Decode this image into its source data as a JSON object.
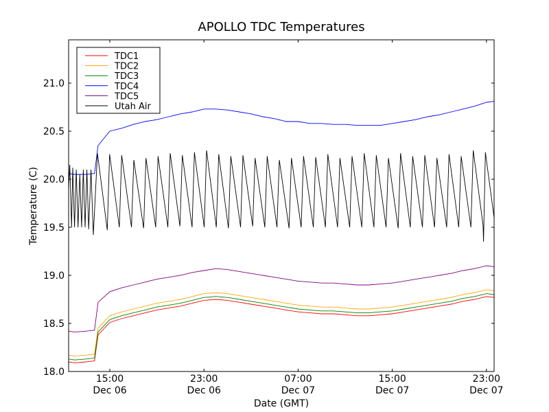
{
  "chart_data": {
    "type": "line",
    "title": "APOLLO TDC Temperatures",
    "xlabel": "Date (GMT)",
    "ylabel": "Temperature (C)",
    "x_units": "hours since Dec 06 00:00 GMT",
    "xlim": [
      11.5,
      47.65
    ],
    "ylim": [
      18.0,
      21.45
    ],
    "grid": false,
    "legend_position": "top-left",
    "yticks": [
      18.0,
      18.5,
      19.0,
      19.5,
      20.0,
      20.5,
      21.0
    ],
    "ytick_labels": [
      "18.0",
      "18.5",
      "19.0",
      "19.5",
      "20.0",
      "20.5",
      "21.0"
    ],
    "xticks": [
      15,
      23,
      31,
      39,
      47
    ],
    "xtick_labels": [
      {
        "time": "15:00",
        "date": "Dec 06"
      },
      {
        "time": "23:00",
        "date": "Dec 06"
      },
      {
        "time": "07:00",
        "date": "Dec 07"
      },
      {
        "time": "15:00",
        "date": "Dec 07"
      },
      {
        "time": "23:00",
        "date": "Dec 07"
      }
    ],
    "series": [
      {
        "name": "TDC1",
        "color": "#ff0000",
        "x": [
          11.5,
          12,
          13,
          13.7,
          14,
          15,
          16,
          17,
          18,
          19,
          20,
          21,
          22,
          23,
          24,
          25,
          26,
          27,
          28,
          29,
          30,
          31,
          32,
          33,
          34,
          35,
          36,
          37,
          38,
          39,
          40,
          41,
          42,
          43,
          44,
          45,
          46,
          47,
          47.65
        ],
        "y": [
          18.1,
          18.09,
          18.1,
          18.11,
          18.38,
          18.51,
          18.55,
          18.58,
          18.61,
          18.64,
          18.66,
          18.68,
          18.71,
          18.74,
          18.75,
          18.74,
          18.72,
          18.7,
          18.68,
          18.66,
          18.64,
          18.62,
          18.61,
          18.6,
          18.6,
          18.59,
          18.58,
          18.58,
          18.59,
          18.6,
          18.62,
          18.64,
          18.66,
          18.68,
          18.7,
          18.73,
          18.75,
          18.78,
          18.77
        ]
      },
      {
        "name": "TDC2",
        "color": "#ffa500",
        "x": [
          11.5,
          12,
          13,
          13.7,
          14,
          15,
          16,
          17,
          18,
          19,
          20,
          21,
          22,
          23,
          24,
          25,
          26,
          27,
          28,
          29,
          30,
          31,
          32,
          33,
          34,
          35,
          36,
          37,
          38,
          39,
          40,
          41,
          42,
          43,
          44,
          45,
          46,
          47,
          47.65
        ],
        "y": [
          18.17,
          18.16,
          18.17,
          18.18,
          18.45,
          18.58,
          18.62,
          18.65,
          18.68,
          18.71,
          18.73,
          18.75,
          18.78,
          18.81,
          18.82,
          18.81,
          18.79,
          18.77,
          18.75,
          18.73,
          18.71,
          18.69,
          18.68,
          18.67,
          18.67,
          18.66,
          18.65,
          18.65,
          18.66,
          18.67,
          18.69,
          18.71,
          18.73,
          18.75,
          18.77,
          18.8,
          18.82,
          18.85,
          18.84
        ]
      },
      {
        "name": "TDC3",
        "color": "#008000",
        "x": [
          11.5,
          12,
          13,
          13.7,
          14,
          15,
          16,
          17,
          18,
          19,
          20,
          21,
          22,
          23,
          24,
          25,
          26,
          27,
          28,
          29,
          30,
          31,
          32,
          33,
          34,
          35,
          36,
          37,
          38,
          39,
          40,
          41,
          42,
          43,
          44,
          45,
          46,
          47,
          47.65
        ],
        "y": [
          18.13,
          18.12,
          18.13,
          18.14,
          18.41,
          18.54,
          18.58,
          18.61,
          18.64,
          18.67,
          18.69,
          18.71,
          18.74,
          18.77,
          18.78,
          18.77,
          18.75,
          18.73,
          18.71,
          18.69,
          18.67,
          18.65,
          18.64,
          18.63,
          18.63,
          18.62,
          18.61,
          18.61,
          18.62,
          18.63,
          18.65,
          18.67,
          18.69,
          18.71,
          18.73,
          18.76,
          18.78,
          18.81,
          18.8
        ]
      },
      {
        "name": "TDC4",
        "color": "#0000ff",
        "x": [
          11.5,
          12,
          13,
          13.7,
          14,
          15,
          16,
          17,
          18,
          19,
          20,
          21,
          22,
          23,
          24,
          25,
          26,
          27,
          28,
          29,
          30,
          31,
          32,
          33,
          34,
          35,
          36,
          37,
          38,
          39,
          40,
          41,
          42,
          43,
          44,
          45,
          46,
          47,
          47.65
        ],
        "y": [
          20.06,
          20.05,
          20.05,
          20.06,
          20.35,
          20.5,
          20.53,
          20.57,
          20.6,
          20.62,
          20.65,
          20.68,
          20.7,
          20.73,
          20.73,
          20.72,
          20.7,
          20.68,
          20.65,
          20.63,
          20.6,
          20.6,
          20.58,
          20.58,
          20.57,
          20.57,
          20.56,
          20.56,
          20.56,
          20.58,
          20.6,
          20.62,
          20.65,
          20.67,
          20.7,
          20.73,
          20.76,
          20.8,
          20.81
        ]
      },
      {
        "name": "TDC5",
        "color": "#800080",
        "x": [
          11.5,
          12,
          13,
          13.7,
          14,
          15,
          16,
          17,
          18,
          19,
          20,
          21,
          22,
          23,
          24,
          25,
          26,
          27,
          28,
          29,
          30,
          31,
          32,
          33,
          34,
          35,
          36,
          37,
          38,
          39,
          40,
          41,
          42,
          43,
          44,
          45,
          46,
          47,
          47.65
        ],
        "y": [
          18.42,
          18.41,
          18.42,
          18.43,
          18.72,
          18.83,
          18.87,
          18.9,
          18.93,
          18.96,
          18.98,
          19.0,
          19.03,
          19.05,
          19.07,
          19.06,
          19.04,
          19.02,
          19.0,
          18.98,
          18.96,
          18.94,
          18.93,
          18.92,
          18.92,
          18.91,
          18.9,
          18.9,
          18.91,
          18.92,
          18.94,
          18.96,
          18.98,
          19.0,
          19.02,
          19.05,
          19.07,
          19.1,
          19.09
        ]
      },
      {
        "name": "Utah Air",
        "color": "#000000",
        "x": [
          11.5,
          11.6,
          11.75,
          11.85,
          12.0,
          12.15,
          12.3,
          12.45,
          12.6,
          12.75,
          12.9,
          13.05,
          13.2,
          13.4,
          13.6,
          13.95,
          14.78,
          14.98,
          15.81,
          16.01,
          16.84,
          17.04,
          17.87,
          18.07,
          18.9,
          19.1,
          19.93,
          20.13,
          20.96,
          21.16,
          21.99,
          22.19,
          23.02,
          23.22,
          24.05,
          24.25,
          25.08,
          25.28,
          26.11,
          26.31,
          27.14,
          27.34,
          28.17,
          28.37,
          29.2,
          29.4,
          30.23,
          30.43,
          31.26,
          31.46,
          32.29,
          32.49,
          33.32,
          33.52,
          34.35,
          34.55,
          35.38,
          35.58,
          36.41,
          36.61,
          37.44,
          37.64,
          38.47,
          38.67,
          39.5,
          39.7,
          40.53,
          40.73,
          41.56,
          41.76,
          42.59,
          42.79,
          43.62,
          43.82,
          44.65,
          44.85,
          45.68,
          45.88,
          46.71,
          46.75,
          46.91,
          47.65
        ],
        "y": [
          19.9,
          20.15,
          19.5,
          20.12,
          19.5,
          20.1,
          19.5,
          20.05,
          19.5,
          20.1,
          19.5,
          20.1,
          19.48,
          20.1,
          19.42,
          20.27,
          19.47,
          20.26,
          19.5,
          20.25,
          19.5,
          20.2,
          19.49,
          20.22,
          19.5,
          20.24,
          19.5,
          20.27,
          19.51,
          20.25,
          19.5,
          20.28,
          19.5,
          20.3,
          19.5,
          20.26,
          19.49,
          20.24,
          19.5,
          20.25,
          19.51,
          20.22,
          19.5,
          20.24,
          19.5,
          20.2,
          19.49,
          20.22,
          19.5,
          20.24,
          19.5,
          20.23,
          19.5,
          20.26,
          19.5,
          20.22,
          19.5,
          20.24,
          19.5,
          20.27,
          19.5,
          20.25,
          19.5,
          20.22,
          19.49,
          20.27,
          19.5,
          20.24,
          19.5,
          20.25,
          19.5,
          20.22,
          19.5,
          20.26,
          19.5,
          20.24,
          19.5,
          20.3,
          19.52,
          19.35,
          20.28,
          19.6
        ]
      }
    ]
  }
}
